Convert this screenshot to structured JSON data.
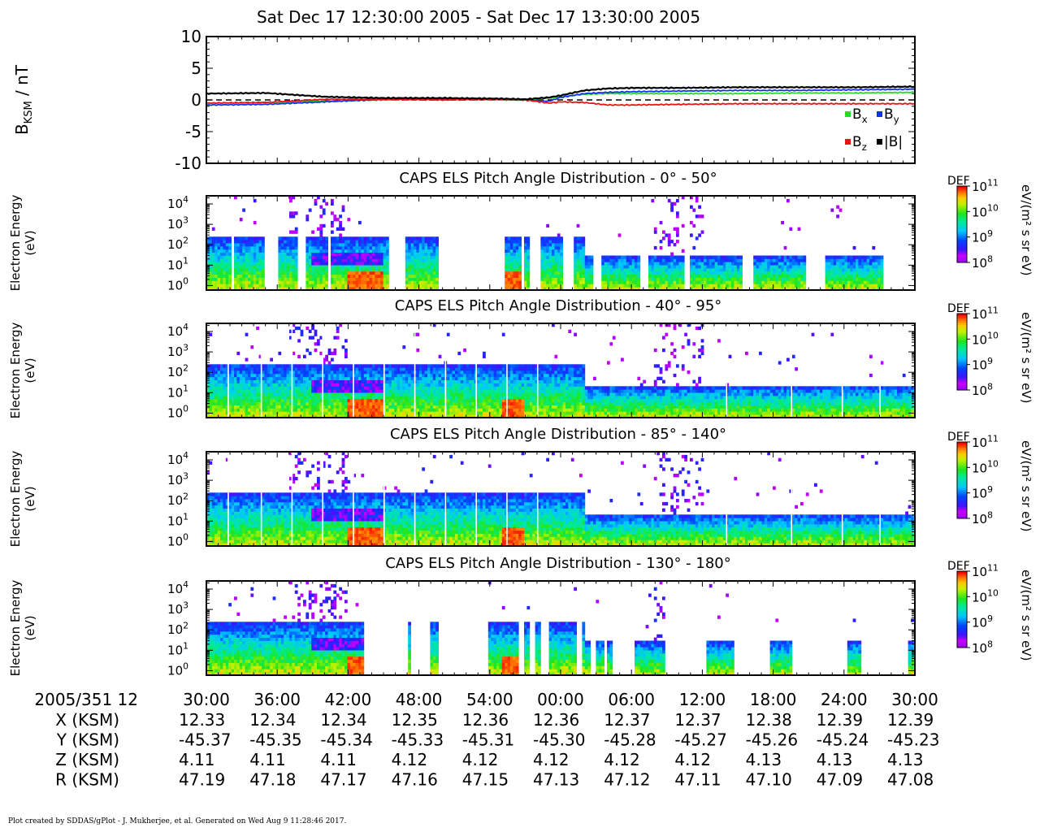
{
  "title": "Sat Dec 17 12:30:00 2005 - Sat Dec 17 13:30:00 2005",
  "footer": "Plot created by SDDAS/gPlot - J. Mukherjee, et al.  Generated on Wed Aug 9 11:28:46 2017.",
  "colors": {
    "bx": "#22dd22",
    "by": "#1133ee",
    "bz": "#ee1111",
    "bmag": "#000000"
  },
  "chart_data": [
    {
      "type": "line",
      "ylabel": "B",
      "ylabel_sub": "KSM",
      "ylabel_unit": " / nT",
      "ylim": [
        -10,
        10
      ],
      "yticks": [
        10,
        5,
        0,
        -5,
        -10
      ],
      "legend": [
        "Bx",
        "By",
        "Bz",
        "|B|"
      ],
      "legend_labels": [
        {
          "base": "B",
          "sub": "x"
        },
        {
          "base": "B",
          "sub": "y"
        },
        {
          "base": "B",
          "sub": "z"
        },
        {
          "base": "|B|",
          "sub": ""
        }
      ],
      "legend_placement": "bottom-right",
      "x_minutes": [
        0,
        5,
        10,
        15,
        20,
        25,
        27,
        29,
        30,
        32,
        34,
        36,
        40,
        45,
        50,
        55,
        60
      ],
      "series": [
        {
          "name": "Bx",
          "values": [
            -0.5,
            -0.4,
            -0.2,
            0.0,
            0.2,
            0.0,
            0.0,
            0.3,
            0.5,
            0.9,
            1.0,
            1.0,
            1.0,
            1.0,
            1.1,
            1.1,
            1.2
          ]
        },
        {
          "name": "By",
          "values": [
            -0.8,
            -0.7,
            -0.3,
            0.1,
            0.2,
            0.1,
            0.0,
            -0.2,
            0.4,
            1.0,
            1.2,
            1.3,
            1.4,
            1.5,
            1.5,
            1.6,
            1.7
          ]
        },
        {
          "name": "Bz",
          "values": [
            -0.5,
            -0.4,
            0.1,
            0.1,
            0.0,
            0.1,
            0.0,
            -0.5,
            -0.3,
            -0.4,
            -0.8,
            -0.8,
            -0.7,
            -0.6,
            -0.6,
            -0.6,
            -0.6
          ]
        },
        {
          "name": "|B|",
          "values": [
            1.0,
            1.1,
            0.5,
            0.3,
            0.3,
            0.2,
            0.1,
            0.4,
            0.7,
            1.5,
            1.8,
            1.9,
            1.9,
            2.0,
            2.0,
            2.0,
            2.1
          ]
        }
      ],
      "zero_line": "dashed"
    },
    {
      "type": "heatmap",
      "title": "CAPS ELS Pitch Angle Distribution - 0° - 50°",
      "ylabel": "Electron Energy",
      "ylabel_unit": "(eV)",
      "y_scale": "log",
      "ylim": [
        0.6,
        25000
      ],
      "yticks": [
        {
          "base": "10",
          "exp": "4"
        },
        {
          "base": "10",
          "exp": "3"
        },
        {
          "base": "10",
          "exp": "2"
        },
        {
          "base": "10",
          "exp": "1"
        },
        {
          "base": "10",
          "exp": "0"
        }
      ],
      "colorbar_label": "DEF",
      "colorbar_unit": "eV/(m² s sr eV)",
      "colorbar_ticks": [
        {
          "base": "10",
          "exp": "11"
        },
        {
          "base": "10",
          "exp": "10"
        },
        {
          "base": "10",
          "exp": "9"
        },
        {
          "base": "10",
          "exp": "8"
        }
      ],
      "colorbar_range_log10": [
        8,
        11
      ],
      "coverage_minutes": [
        [
          0,
          2.2
        ],
        [
          2.4,
          4.8
        ],
        [
          6.1,
          7.7
        ],
        [
          8.5,
          10.2
        ],
        [
          10.6,
          15.4
        ],
        [
          16.9,
          19.6
        ],
        [
          25.3,
          26.6
        ],
        [
          27.0,
          27.3
        ],
        [
          28.4,
          30.2
        ],
        [
          31.0,
          32.8
        ],
        [
          33.5,
          36.8
        ],
        [
          37.5,
          40.4
        ],
        [
          41.0,
          45.4
        ],
        [
          46.4,
          50.8
        ],
        [
          52.5,
          57.2
        ]
      ]
    },
    {
      "type": "heatmap",
      "title": "CAPS ELS Pitch Angle Distribution - 40° - 95°",
      "ylabel": "Electron Energy",
      "ylabel_unit": "(eV)",
      "y_scale": "log",
      "ylim": [
        0.6,
        25000
      ],
      "yticks": [
        {
          "base": "10",
          "exp": "4"
        },
        {
          "base": "10",
          "exp": "3"
        },
        {
          "base": "10",
          "exp": "2"
        },
        {
          "base": "10",
          "exp": "1"
        },
        {
          "base": "10",
          "exp": "0"
        }
      ],
      "colorbar_label": "DEF",
      "colorbar_unit": "eV/(m² s sr eV)",
      "colorbar_ticks": [
        {
          "base": "10",
          "exp": "11"
        },
        {
          "base": "10",
          "exp": "10"
        },
        {
          "base": "10",
          "exp": "9"
        },
        {
          "base": "10",
          "exp": "8"
        }
      ],
      "colorbar_range_log10": [
        8,
        11
      ],
      "coverage_minutes": [
        [
          0,
          60
        ]
      ]
    },
    {
      "type": "heatmap",
      "title": "CAPS ELS Pitch Angle Distribution - 85° - 140°",
      "ylabel": "Electron Energy",
      "ylabel_unit": "(eV)",
      "y_scale": "log",
      "ylim": [
        0.6,
        25000
      ],
      "yticks": [
        {
          "base": "10",
          "exp": "4"
        },
        {
          "base": "10",
          "exp": "3"
        },
        {
          "base": "10",
          "exp": "2"
        },
        {
          "base": "10",
          "exp": "1"
        },
        {
          "base": "10",
          "exp": "0"
        }
      ],
      "colorbar_label": "DEF",
      "colorbar_unit": "eV/(m² s sr eV)",
      "colorbar_ticks": [
        {
          "base": "10",
          "exp": "11"
        },
        {
          "base": "10",
          "exp": "10"
        },
        {
          "base": "10",
          "exp": "9"
        },
        {
          "base": "10",
          "exp": "8"
        }
      ],
      "colorbar_range_log10": [
        8,
        11
      ],
      "coverage_minutes": [
        [
          0,
          60
        ]
      ]
    },
    {
      "type": "heatmap",
      "title": "CAPS ELS Pitch Angle Distribution - 130° - 180°",
      "ylabel": "Electron Energy",
      "ylabel_unit": "(eV)",
      "y_scale": "log",
      "ylim": [
        0.6,
        25000
      ],
      "yticks": [
        {
          "base": "10",
          "exp": "4"
        },
        {
          "base": "10",
          "exp": "3"
        },
        {
          "base": "10",
          "exp": "2"
        },
        {
          "base": "10",
          "exp": "1"
        },
        {
          "base": "10",
          "exp": "0"
        }
      ],
      "colorbar_label": "DEF",
      "colorbar_unit": "eV/(m² s sr eV)",
      "colorbar_ticks": [
        {
          "base": "10",
          "exp": "11"
        },
        {
          "base": "10",
          "exp": "10"
        },
        {
          "base": "10",
          "exp": "9"
        },
        {
          "base": "10",
          "exp": "8"
        }
      ],
      "colorbar_range_log10": [
        8,
        11
      ],
      "coverage_minutes": [
        [
          0,
          13.4
        ],
        [
          17.1,
          17.4
        ],
        [
          19.0,
          19.6
        ],
        [
          23.9,
          26.4
        ],
        [
          27.0,
          27.3
        ],
        [
          27.9,
          28.4
        ],
        [
          28.9,
          31.4
        ],
        [
          31.8,
          32.6
        ],
        [
          33.0,
          33.8
        ],
        [
          33.9,
          34.3
        ],
        [
          36.2,
          38.9
        ],
        [
          42.3,
          44.7
        ],
        [
          47.8,
          49.6
        ],
        [
          54.3,
          55.5
        ],
        [
          59.5,
          60
        ]
      ]
    }
  ],
  "time_axis": {
    "row_label": "2005/351 12",
    "minutes": [
      0,
      6,
      12,
      18,
      24,
      30,
      36,
      42,
      48,
      54,
      60
    ],
    "labels": [
      "30:00",
      "36:00",
      "42:00",
      "48:00",
      "54:00",
      "00:00",
      "06:00",
      "12:00",
      "18:00",
      "24:00",
      "30:00"
    ]
  },
  "ephemeris": [
    {
      "label": "X (KSM)",
      "values": [
        "12.33",
        "12.34",
        "12.34",
        "12.35",
        "12.36",
        "12.36",
        "12.37",
        "12.37",
        "12.38",
        "12.39",
        "12.39"
      ]
    },
    {
      "label": "Y (KSM)",
      "values": [
        "-45.37",
        "-45.35",
        "-45.34",
        "-45.33",
        "-45.31",
        "-45.30",
        "-45.28",
        "-45.27",
        "-45.26",
        "-45.24",
        "-45.23"
      ]
    },
    {
      "label": "Z (KSM)",
      "values": [
        "4.11",
        "4.11",
        "4.11",
        "4.12",
        "4.12",
        "4.12",
        "4.12",
        "4.12",
        "4.13",
        "4.13",
        "4.13"
      ]
    },
    {
      "label": "R (KSM)",
      "values": [
        "47.19",
        "47.18",
        "47.17",
        "47.16",
        "47.15",
        "47.13",
        "47.12",
        "47.11",
        "47.10",
        "47.09",
        "47.08"
      ]
    }
  ]
}
